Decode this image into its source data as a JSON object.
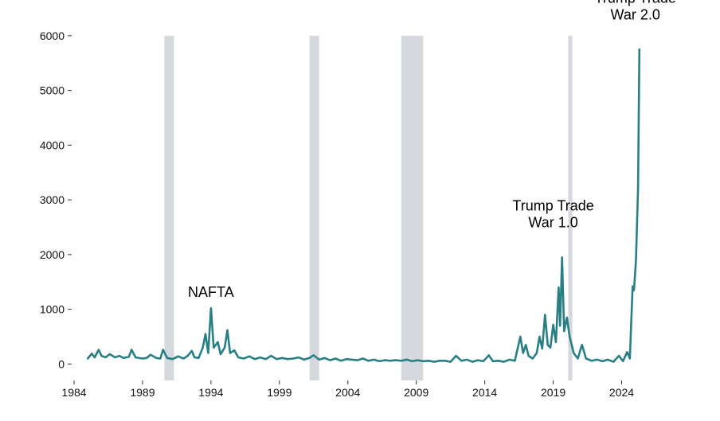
{
  "chart_data": {
    "type": "line",
    "title": "",
    "xlabel": "",
    "ylabel": "",
    "xlim": [
      1984,
      2025.6
    ],
    "ylim": [
      -300,
      6100
    ],
    "grid": false,
    "legend": "none",
    "x_ticks": [
      1984,
      1989,
      1994,
      1999,
      2004,
      2009,
      2014,
      2019,
      2024
    ],
    "y_ticks": [
      0,
      1000,
      2000,
      3000,
      4000,
      5000,
      6000
    ],
    "line_color": "#2a7f84",
    "shade_color": "#d5d9de",
    "recessions": [
      {
        "start": 1990.6,
        "end": 1991.3
      },
      {
        "start": 2001.2,
        "end": 2001.9
      },
      {
        "start": 2007.9,
        "end": 2009.5
      },
      {
        "start": 2020.1,
        "end": 2020.4
      }
    ],
    "annotations": [
      {
        "lines": [
          "NAFTA"
        ],
        "x": 1994.0,
        "y": 1230
      },
      {
        "lines": [
          "Trump Trade",
          "War 1.0"
        ],
        "x": 2019.0,
        "y": 2500
      },
      {
        "lines": [
          "Trump Trade",
          "War 2.0"
        ],
        "x": 2025.0,
        "y": 6300
      }
    ],
    "series": [
      {
        "values": [
          [
            1985.0,
            100
          ],
          [
            1985.3,
            190
          ],
          [
            1985.5,
            120
          ],
          [
            1985.8,
            260
          ],
          [
            1986.0,
            150
          ],
          [
            1986.3,
            120
          ],
          [
            1986.6,
            180
          ],
          [
            1987.0,
            120
          ],
          [
            1987.3,
            150
          ],
          [
            1987.6,
            110
          ],
          [
            1988.0,
            130
          ],
          [
            1988.2,
            260
          ],
          [
            1988.5,
            120
          ],
          [
            1989.0,
            100
          ],
          [
            1989.3,
            110
          ],
          [
            1989.6,
            170
          ],
          [
            1990.0,
            110
          ],
          [
            1990.3,
            100
          ],
          [
            1990.5,
            260
          ],
          [
            1990.8,
            110
          ],
          [
            1991.2,
            90
          ],
          [
            1991.6,
            140
          ],
          [
            1992.0,
            100
          ],
          [
            1992.3,
            150
          ],
          [
            1992.6,
            240
          ],
          [
            1992.8,
            120
          ],
          [
            1993.1,
            110
          ],
          [
            1993.4,
            300
          ],
          [
            1993.6,
            550
          ],
          [
            1993.8,
            200
          ],
          [
            1994.0,
            1020
          ],
          [
            1994.2,
            300
          ],
          [
            1994.5,
            400
          ],
          [
            1994.7,
            180
          ],
          [
            1995.0,
            300
          ],
          [
            1995.2,
            620
          ],
          [
            1995.4,
            200
          ],
          [
            1995.7,
            250
          ],
          [
            1996.0,
            120
          ],
          [
            1996.4,
            100
          ],
          [
            1996.8,
            140
          ],
          [
            1997.2,
            90
          ],
          [
            1997.6,
            120
          ],
          [
            1998.0,
            90
          ],
          [
            1998.4,
            150
          ],
          [
            1998.8,
            90
          ],
          [
            1999.2,
            110
          ],
          [
            1999.6,
            90
          ],
          [
            2000.0,
            100
          ],
          [
            2000.4,
            120
          ],
          [
            2000.8,
            80
          ],
          [
            2001.2,
            110
          ],
          [
            2001.5,
            160
          ],
          [
            2001.9,
            80
          ],
          [
            2002.3,
            110
          ],
          [
            2002.7,
            70
          ],
          [
            2003.1,
            100
          ],
          [
            2003.5,
            60
          ],
          [
            2003.9,
            90
          ],
          [
            2004.3,
            80
          ],
          [
            2004.7,
            70
          ],
          [
            2005.1,
            100
          ],
          [
            2005.5,
            60
          ],
          [
            2005.9,
            80
          ],
          [
            2006.3,
            50
          ],
          [
            2006.7,
            70
          ],
          [
            2007.1,
            60
          ],
          [
            2007.5,
            70
          ],
          [
            2007.9,
            60
          ],
          [
            2008.3,
            80
          ],
          [
            2008.7,
            50
          ],
          [
            2009.1,
            70
          ],
          [
            2009.5,
            50
          ],
          [
            2009.9,
            60
          ],
          [
            2010.3,
            40
          ],
          [
            2010.7,
            60
          ],
          [
            2011.1,
            60
          ],
          [
            2011.5,
            40
          ],
          [
            2011.9,
            150
          ],
          [
            2012.3,
            60
          ],
          [
            2012.7,
            80
          ],
          [
            2013.1,
            40
          ],
          [
            2013.5,
            70
          ],
          [
            2013.9,
            50
          ],
          [
            2014.3,
            160
          ],
          [
            2014.6,
            50
          ],
          [
            2015.0,
            60
          ],
          [
            2015.4,
            40
          ],
          [
            2015.8,
            80
          ],
          [
            2016.2,
            60
          ],
          [
            2016.4,
            280
          ],
          [
            2016.6,
            500
          ],
          [
            2016.8,
            200
          ],
          [
            2017.0,
            350
          ],
          [
            2017.2,
            150
          ],
          [
            2017.5,
            100
          ],
          [
            2017.8,
            200
          ],
          [
            2018.0,
            500
          ],
          [
            2018.2,
            280
          ],
          [
            2018.4,
            900
          ],
          [
            2018.6,
            350
          ],
          [
            2018.8,
            300
          ],
          [
            2019.0,
            720
          ],
          [
            2019.2,
            400
          ],
          [
            2019.4,
            1400
          ],
          [
            2019.5,
            700
          ],
          [
            2019.65,
            1950
          ],
          [
            2019.8,
            600
          ],
          [
            2020.0,
            850
          ],
          [
            2020.2,
            500
          ],
          [
            2020.5,
            200
          ],
          [
            2020.8,
            100
          ],
          [
            2021.1,
            350
          ],
          [
            2021.4,
            100
          ],
          [
            2021.8,
            60
          ],
          [
            2022.2,
            80
          ],
          [
            2022.6,
            50
          ],
          [
            2023.0,
            80
          ],
          [
            2023.4,
            40
          ],
          [
            2023.8,
            150
          ],
          [
            2024.1,
            50
          ],
          [
            2024.4,
            220
          ],
          [
            2024.6,
            100
          ],
          [
            2024.8,
            1420
          ],
          [
            2024.9,
            1350
          ],
          [
            2025.05,
            1900
          ],
          [
            2025.2,
            3200
          ],
          [
            2025.3,
            5750
          ]
        ]
      }
    ]
  }
}
